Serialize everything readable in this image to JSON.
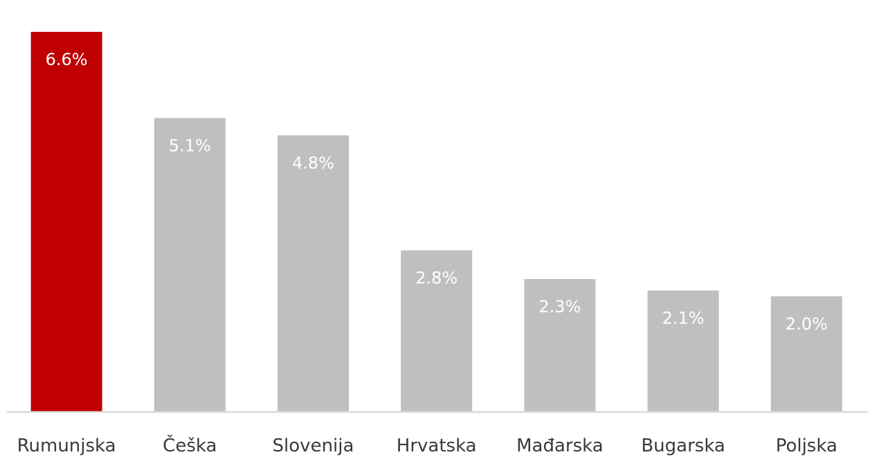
{
  "chart_data": {
    "type": "bar",
    "categories": [
      "Rumunjska",
      "Češka",
      "Slovenija",
      "Hrvatska",
      "Mađarska",
      "Bugarska",
      "Poljska"
    ],
    "values": [
      6.6,
      5.1,
      4.8,
      2.8,
      2.3,
      2.1,
      2.0
    ],
    "value_labels": [
      "6.6%",
      "5.1%",
      "4.8%",
      "2.8%",
      "2.3%",
      "2.1%",
      "2.0%"
    ],
    "title": "",
    "xlabel": "",
    "ylabel": "",
    "ylim": [
      0,
      6.6
    ],
    "grid": false,
    "legend": "none",
    "colors": {
      "highlight": "#c00000",
      "default": "#bfbfbf",
      "axis": "#d9d9d9",
      "label_inside": "#ffffff",
      "category_text": "#3a3a3a"
    },
    "highlight_index": 0
  }
}
